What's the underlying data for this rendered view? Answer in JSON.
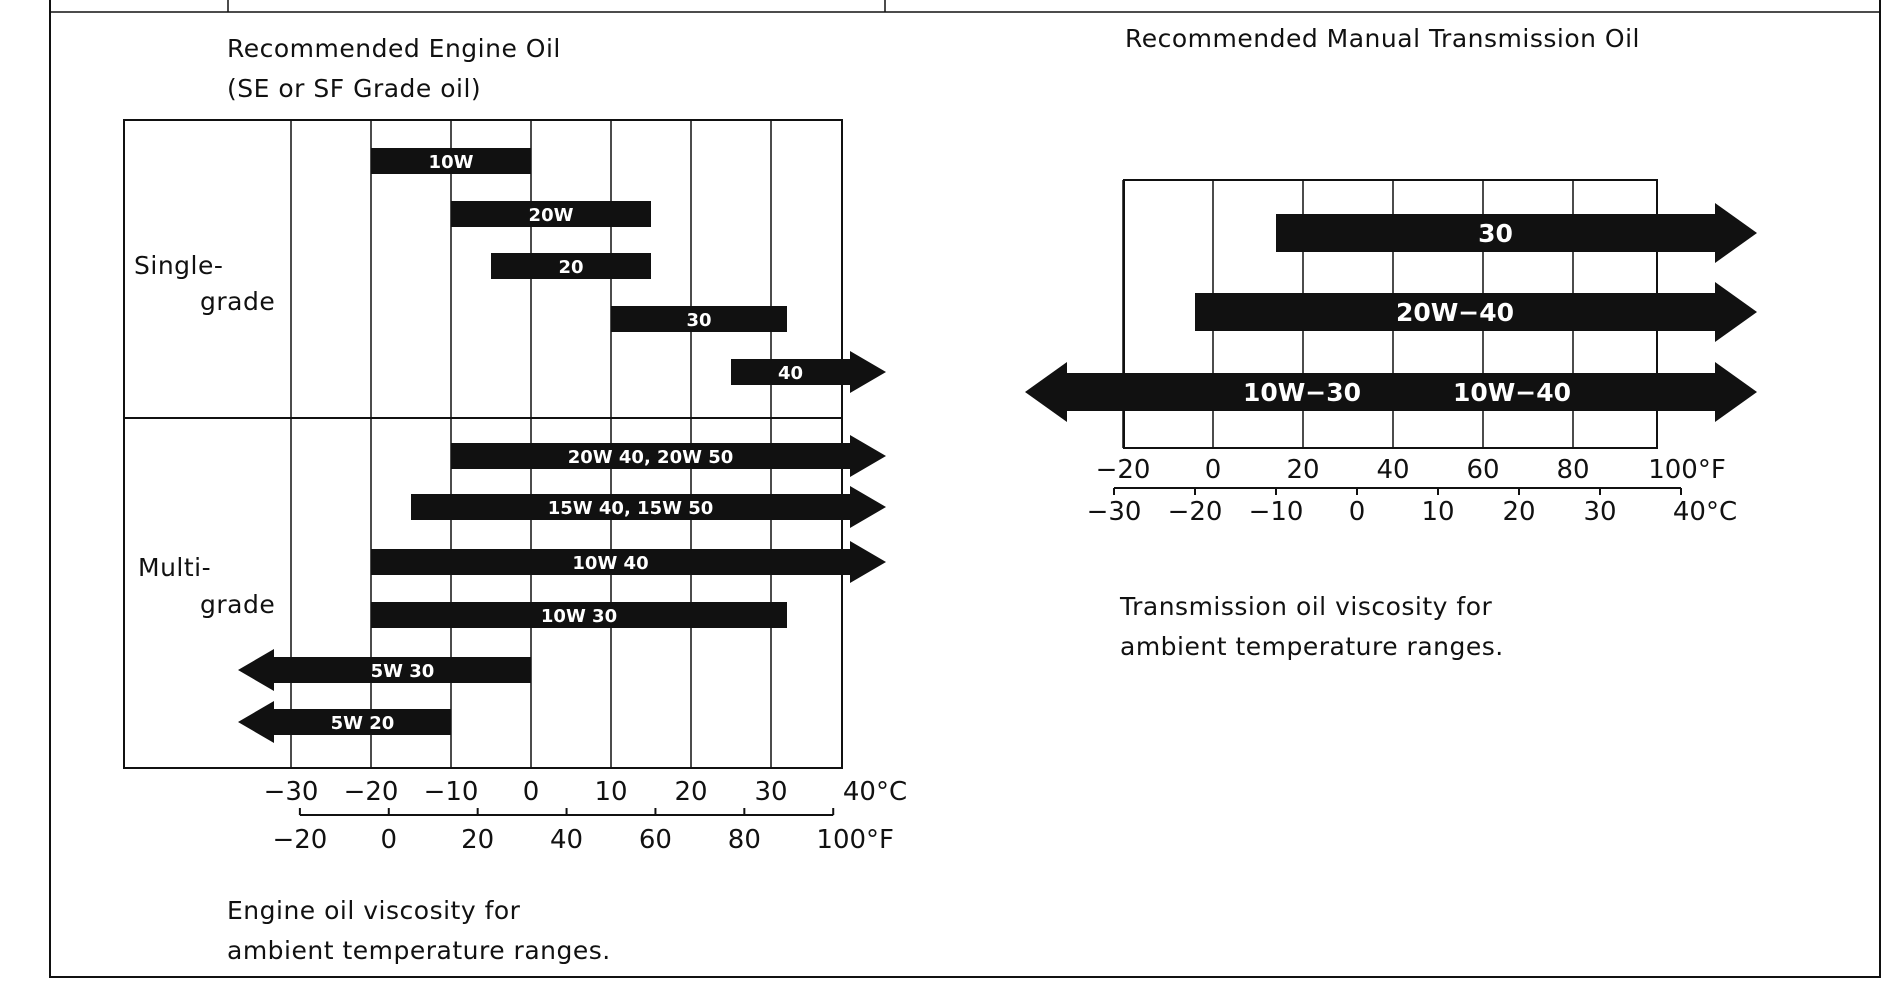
{
  "engine": {
    "title_line1": "Recommended Engine Oil",
    "title_line2": "(SE or SF Grade oil)",
    "caption_line1": "Engine oil viscosity for",
    "caption_line2": "ambient temperature ranges.",
    "group_single_1": "Single-",
    "group_single_2": "grade",
    "group_multi_1": "Multi-",
    "group_multi_2": "grade"
  },
  "transmission": {
    "title": "Recommended Manual Transmission Oil",
    "caption_line1": "Transmission oil viscosity for",
    "caption_line2": "ambient temperature ranges."
  },
  "colors": {
    "bar": "#111111",
    "bar_text": "#ffffff",
    "grid": "#111111"
  },
  "chart_data": [
    {
      "type": "bar",
      "title": "Recommended Engine Oil",
      "subtitle": "(SE or SF Grade oil)",
      "x_unit_primary": "°C",
      "x_unit_secondary": "°F",
      "xlim_c": [
        -40,
        40
      ],
      "ticks_c": [
        "−30",
        "−20",
        "−10",
        "0",
        "10",
        "20",
        "30",
        "40°C"
      ],
      "ticks_f": [
        "−20",
        "0",
        "20",
        "40",
        "60",
        "80",
        "100°F"
      ],
      "groups": [
        "Single-grade",
        "Multi-grade"
      ],
      "series": [
        {
          "name": "10W",
          "group": "Single-grade",
          "from_c": -20,
          "to_c": 0,
          "arrow_left": false,
          "arrow_right": false
        },
        {
          "name": "20W",
          "group": "Single-grade",
          "from_c": -10,
          "to_c": 15,
          "arrow_left": false,
          "arrow_right": false
        },
        {
          "name": "20",
          "group": "Single-grade",
          "from_c": -5,
          "to_c": 15,
          "arrow_left": false,
          "arrow_right": false
        },
        {
          "name": "30",
          "group": "Single-grade",
          "from_c": 10,
          "to_c": 32,
          "arrow_left": false,
          "arrow_right": false
        },
        {
          "name": "40",
          "group": "Single-grade",
          "from_c": 25,
          "to_c": 40,
          "arrow_left": false,
          "arrow_right": true
        },
        {
          "name": "20W 40, 20W 50",
          "group": "Multi-grade",
          "from_c": -10,
          "to_c": 40,
          "arrow_left": false,
          "arrow_right": true
        },
        {
          "name": "15W 40, 15W 50",
          "group": "Multi-grade",
          "from_c": -15,
          "to_c": 40,
          "arrow_left": false,
          "arrow_right": true
        },
        {
          "name": "10W 40",
          "group": "Multi-grade",
          "from_c": -20,
          "to_c": 40,
          "arrow_left": false,
          "arrow_right": true
        },
        {
          "name": "10W 30",
          "group": "Multi-grade",
          "from_c": -20,
          "to_c": 32,
          "arrow_left": false,
          "arrow_right": false
        },
        {
          "name": "5W 30",
          "group": "Multi-grade",
          "from_c": -40,
          "to_c": 0,
          "arrow_left": true,
          "arrow_right": false
        },
        {
          "name": "5W 20",
          "group": "Multi-grade",
          "from_c": -40,
          "to_c": -10,
          "arrow_left": true,
          "arrow_right": false
        }
      ]
    },
    {
      "type": "bar",
      "title": "Recommended Manual Transmission Oil",
      "x_unit_primary": "°F",
      "x_unit_secondary": "°C",
      "xlim_f": [
        -40,
        120
      ],
      "ticks_f": [
        "−20",
        "0",
        "20",
        "40",
        "60",
        "80",
        "100°F"
      ],
      "ticks_c": [
        "−30",
        "−20",
        "−10",
        "0",
        "10",
        "20",
        "30",
        "40°C"
      ],
      "series": [
        {
          "name": "30",
          "from_f": 14,
          "to_f": 120,
          "arrow_left": false,
          "arrow_right": true,
          "label_pos": "center"
        },
        {
          "name": "20W−40",
          "from_f": -4,
          "to_f": 120,
          "arrow_left": false,
          "arrow_right": true,
          "label_pos": "center"
        },
        {
          "name": "10W−30",
          "name2": "10W−40",
          "from_f": -40,
          "to_f": 120,
          "arrow_left": true,
          "arrow_right": true,
          "label_pos": "split"
        }
      ]
    }
  ]
}
